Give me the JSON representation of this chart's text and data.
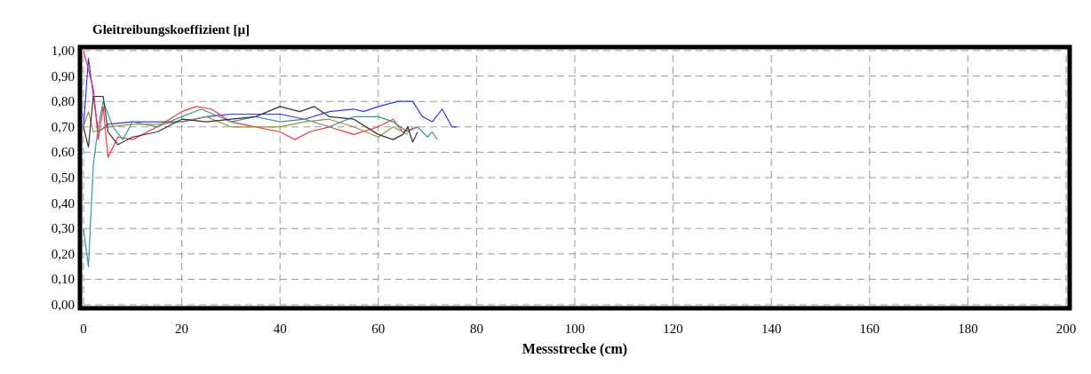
{
  "chart_data": {
    "type": "line",
    "title": "Gleitreibungskoeffizient [µ]",
    "xlabel": "Messstrecke (cm)",
    "xlim": [
      0,
      200
    ],
    "xticks": [
      0,
      20,
      40,
      60,
      80,
      100,
      120,
      140,
      160,
      180,
      200
    ],
    "ylim": [
      0,
      1
    ],
    "yticks": [
      {
        "value": 0,
        "label": "0,00"
      },
      {
        "value": 0.1,
        "label": "0,10"
      },
      {
        "value": 0.2,
        "label": "0,20"
      },
      {
        "value": 0.3,
        "label": "0,30"
      },
      {
        "value": 0.4,
        "label": "0,40"
      },
      {
        "value": 0.5,
        "label": "0,50"
      },
      {
        "value": 0.6,
        "label": "0,60"
      },
      {
        "value": 0.7,
        "label": "0,70"
      },
      {
        "value": 0.8,
        "label": "0,80"
      },
      {
        "value": 0.9,
        "label": "0,90"
      },
      {
        "value": 1,
        "label": "1,00"
      }
    ],
    "grid": true,
    "line_style": "solid",
    "marker": "none",
    "series": [
      {
        "color": "#3333ff",
        "x": [
          0,
          1,
          3,
          5,
          10,
          15,
          20,
          25,
          30,
          35,
          40,
          45,
          50,
          55,
          57,
          60,
          64,
          67,
          69,
          71,
          73,
          75,
          76
        ],
        "values": [
          0.7,
          0.97,
          0.68,
          0.71,
          0.72,
          0.72,
          0.72,
          0.74,
          0.75,
          0.75,
          0.75,
          0.73,
          0.76,
          0.77,
          0.76,
          0.78,
          0.8,
          0.8,
          0.74,
          0.72,
          0.77,
          0.7,
          0.7
        ]
      },
      {
        "color": "#ff3333",
        "x": [
          0,
          2,
          3,
          4,
          5,
          7,
          10,
          15,
          20,
          23,
          26,
          30,
          35,
          40,
          43,
          46,
          50,
          55,
          60,
          63,
          65,
          68
        ],
        "values": [
          1.0,
          0.85,
          0.65,
          0.78,
          0.58,
          0.66,
          0.65,
          0.7,
          0.76,
          0.78,
          0.77,
          0.72,
          0.7,
          0.68,
          0.65,
          0.68,
          0.7,
          0.67,
          0.7,
          0.73,
          0.68,
          0.7
        ]
      },
      {
        "color": "#339999",
        "x": [
          0,
          1,
          2,
          3,
          4,
          6,
          8,
          10,
          15,
          20,
          24,
          30,
          35,
          40,
          45,
          50,
          55,
          60,
          63,
          66,
          68,
          70,
          71,
          72
        ],
        "values": [
          0.3,
          0.15,
          0.55,
          0.7,
          0.8,
          0.7,
          0.65,
          0.72,
          0.7,
          0.74,
          0.77,
          0.72,
          0.74,
          0.72,
          0.73,
          0.7,
          0.74,
          0.74,
          0.72,
          0.68,
          0.7,
          0.66,
          0.68,
          0.65
        ]
      },
      {
        "color": "#999933",
        "x": [
          0,
          1,
          2,
          5,
          10,
          15,
          20,
          25,
          30,
          35,
          40,
          45,
          50,
          55,
          60,
          63,
          66
        ],
        "values": [
          0.7,
          0.76,
          0.68,
          0.7,
          0.71,
          0.71,
          0.72,
          0.74,
          0.7,
          0.7,
          0.7,
          0.72,
          0.73,
          0.7,
          0.66,
          0.7,
          0.67
        ]
      },
      {
        "color": "#333333",
        "x": [
          0,
          1,
          2,
          4,
          5,
          7,
          10,
          15,
          20,
          25,
          30,
          35,
          40,
          44,
          47,
          50,
          55,
          60,
          63,
          65,
          66,
          67,
          68
        ],
        "values": [
          0.7,
          0.62,
          0.82,
          0.82,
          0.68,
          0.63,
          0.66,
          0.68,
          0.73,
          0.72,
          0.73,
          0.74,
          0.78,
          0.76,
          0.78,
          0.74,
          0.73,
          0.67,
          0.65,
          0.67,
          0.7,
          0.64,
          0.68
        ]
      }
    ]
  }
}
